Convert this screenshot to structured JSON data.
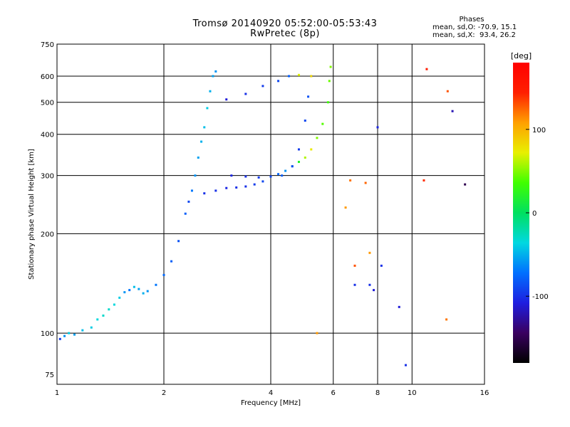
{
  "title": {
    "line1": "Tromsø 20140920 05:52:00-05:53:43",
    "line2": "RwPretec (8p)"
  },
  "phase_box": {
    "heading": "Phases",
    "line1": "mean, sd,O: -70.9, 15.1",
    "line2": "mean, sd,X:  93.4, 26.2"
  },
  "colorbar": {
    "label": "[deg]",
    "ticks": [
      {
        "value": 100,
        "label": "100"
      },
      {
        "value": 0,
        "label": "0"
      },
      {
        "value": -100,
        "label": "-100"
      }
    ],
    "range": [
      -180,
      180
    ],
    "colors": [
      "#000000",
      "#3a0060",
      "#1e1ee0",
      "#0070ff",
      "#00d8e0",
      "#00e060",
      "#40ff00",
      "#e8f000",
      "#ffa000",
      "#ff2000",
      "#ff0000"
    ]
  },
  "chart_data": {
    "type": "scatter",
    "xlabel": "Frequency [MHz]",
    "ylabel": "Stationary phase Virtual Height [km]",
    "x_scale": "log",
    "y_scale": "log",
    "xlim": [
      1,
      16
    ],
    "ylim": [
      70,
      750
    ],
    "x_ticks": [
      {
        "value": 1,
        "label": "1"
      },
      {
        "value": 2,
        "label": "2"
      },
      {
        "value": 4,
        "label": "4"
      },
      {
        "value": 6,
        "label": "6"
      },
      {
        "value": 8,
        "label": "8"
      },
      {
        "value": 10,
        "label": "10"
      },
      {
        "value": 16,
        "label": "16"
      }
    ],
    "y_ticks": [
      {
        "value": 75,
        "label": "75"
      },
      {
        "value": 100,
        "label": "100"
      },
      {
        "value": 200,
        "label": "200"
      },
      {
        "value": 300,
        "label": "300"
      },
      {
        "value": 400,
        "label": "400"
      },
      {
        "value": 500,
        "label": "500"
      },
      {
        "value": 600,
        "label": "600"
      },
      {
        "value": 750,
        "label": "750"
      }
    ],
    "grid": true,
    "series": [
      {
        "points": [
          [
            1.02,
            96,
            -95
          ],
          [
            1.05,
            98,
            -60
          ],
          [
            1.08,
            100,
            -40
          ],
          [
            1.12,
            99,
            -55
          ],
          [
            1.18,
            102,
            -45
          ],
          [
            1.25,
            104,
            -40
          ],
          [
            1.3,
            110,
            -35
          ],
          [
            1.35,
            113,
            -30
          ],
          [
            1.4,
            118,
            -30
          ],
          [
            1.45,
            122,
            -35
          ],
          [
            1.5,
            128,
            -40
          ],
          [
            1.55,
            133,
            -60
          ],
          [
            1.6,
            135,
            -70
          ],
          [
            1.65,
            138,
            -45
          ],
          [
            1.7,
            136,
            -55
          ],
          [
            1.75,
            132,
            -50
          ],
          [
            1.8,
            134,
            -60
          ],
          [
            1.9,
            140,
            -70
          ],
          [
            2.0,
            150,
            -75
          ],
          [
            2.1,
            165,
            -80
          ],
          [
            2.2,
            190,
            -85
          ],
          [
            2.3,
            230,
            -80
          ],
          [
            2.35,
            250,
            -90
          ],
          [
            2.4,
            270,
            -70
          ],
          [
            2.45,
            300,
            -60
          ],
          [
            2.5,
            340,
            -55
          ],
          [
            2.55,
            380,
            -50
          ],
          [
            2.6,
            420,
            -45
          ],
          [
            2.65,
            480,
            -40
          ],
          [
            2.7,
            540,
            -50
          ],
          [
            2.75,
            600,
            -55
          ],
          [
            2.8,
            620,
            -60
          ]
        ]
      },
      {
        "points": [
          [
            2.6,
            265,
            -100
          ],
          [
            2.8,
            270,
            -100
          ],
          [
            3.0,
            275,
            -105
          ],
          [
            3.2,
            276,
            -100
          ],
          [
            3.4,
            278,
            -100
          ],
          [
            3.6,
            282,
            -95
          ],
          [
            3.8,
            288,
            -90
          ],
          [
            4.0,
            298,
            -85
          ],
          [
            4.2,
            303,
            -75
          ],
          [
            4.4,
            310,
            -60
          ],
          [
            4.6,
            320,
            -40
          ],
          [
            4.8,
            330,
            20
          ],
          [
            5.0,
            340,
            60
          ],
          [
            5.2,
            360,
            75
          ],
          [
            5.4,
            390,
            50
          ],
          [
            5.6,
            430,
            40
          ],
          [
            5.8,
            500,
            35
          ],
          [
            5.85,
            580,
            45
          ],
          [
            5.9,
            640,
            50
          ]
        ]
      },
      {
        "points": [
          [
            3.1,
            300,
            -105
          ],
          [
            3.4,
            298,
            -100
          ],
          [
            3.7,
            296,
            -95
          ],
          [
            4.0,
            298,
            -90
          ],
          [
            4.3,
            300,
            -80
          ],
          [
            4.6,
            320,
            -90
          ],
          [
            4.8,
            360,
            -95
          ],
          [
            5.0,
            440,
            -90
          ],
          [
            5.1,
            520,
            -85
          ],
          [
            5.2,
            600,
            -80
          ],
          [
            3.0,
            510,
            -110
          ],
          [
            3.4,
            530,
            -100
          ],
          [
            3.8,
            560,
            -95
          ],
          [
            4.2,
            580,
            -90
          ],
          [
            4.5,
            600,
            -80
          ],
          [
            4.8,
            605,
            70
          ],
          [
            5.2,
            600,
            85
          ]
        ]
      },
      {
        "points": [
          [
            6.5,
            240,
            110
          ],
          [
            6.7,
            290,
            120
          ],
          [
            6.9,
            160,
            130
          ],
          [
            7.4,
            285,
            125
          ],
          [
            7.6,
            175,
            110
          ],
          [
            8.2,
            160,
            -100
          ],
          [
            9.2,
            120,
            -110
          ],
          [
            10.8,
            290,
            140
          ],
          [
            11.0,
            630,
            150
          ],
          [
            12.5,
            110,
            120
          ],
          [
            12.6,
            540,
            130
          ],
          [
            13.0,
            470,
            -120
          ],
          [
            14.1,
            282,
            -150
          ],
          [
            7.8,
            135,
            -110
          ],
          [
            6.9,
            140,
            -100
          ],
          [
            9.6,
            80,
            -100
          ],
          [
            8.0,
            420,
            -105
          ],
          [
            5.4,
            100,
            110
          ],
          [
            7.6,
            140,
            -100
          ]
        ]
      }
    ]
  }
}
